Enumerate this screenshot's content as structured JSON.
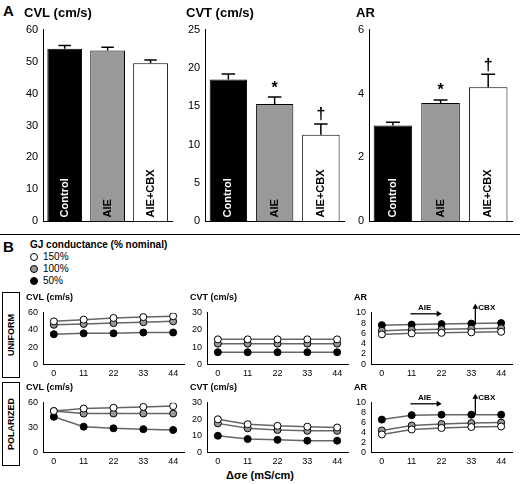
{
  "figure": {
    "panel_labels": [
      "A",
      "B"
    ],
    "row_labels": [
      "UNIFORM",
      "POLARIZED"
    ],
    "legend_title": "GJ conductance (% nominal)",
    "x_label": "Δσe (mS/cm)"
  },
  "chart_data": [
    {
      "type": "bar",
      "title": "CVL (cm/s)",
      "categories": [
        "Control",
        "AIE",
        "AIE+CBX"
      ],
      "values": [
        54,
        53.5,
        49.5
      ],
      "errors": [
        1,
        1,
        1
      ],
      "colors": [
        "#000000",
        "#999999",
        "#ffffff"
      ],
      "ylim": [
        0,
        60
      ],
      "yticks": [
        0,
        10,
        20,
        30,
        40,
        50,
        60
      ],
      "grid": false,
      "tick_labels": "y"
    },
    {
      "type": "bar",
      "title": "CVT (cm/s)",
      "categories": [
        "Control",
        "AIE",
        "AIE+CBX"
      ],
      "values": [
        18.5,
        15.3,
        11.3
      ],
      "errors": [
        0.7,
        0.9,
        1.4
      ],
      "colors": [
        "#000000",
        "#999999",
        "#ffffff"
      ],
      "ylim": [
        0,
        25
      ],
      "yticks": [
        0,
        5,
        10,
        15,
        20,
        25
      ],
      "grid": false,
      "tick_labels": "y",
      "annotations": [
        {
          "category": "AIE",
          "text": "*"
        },
        {
          "category": "AIE+CBX",
          "text": "†"
        }
      ]
    },
    {
      "type": "bar",
      "title": "AR",
      "categories": [
        "Control",
        "AIE",
        "AIE+CBX"
      ],
      "values": [
        3.0,
        3.7,
        4.2
      ],
      "errors": [
        0.1,
        0.1,
        0.4
      ],
      "colors": [
        "#000000",
        "#999999",
        "#ffffff"
      ],
      "ylim": [
        0,
        6
      ],
      "yticks": [
        0,
        2,
        4,
        6
      ],
      "grid": false,
      "tick_labels": "y",
      "annotations": [
        {
          "category": "AIE",
          "text": "*"
        },
        {
          "category": "AIE+CBX",
          "text": "†"
        }
      ]
    },
    {
      "type": "line",
      "title": "CVL (cm/s)",
      "x": [
        0,
        11,
        22,
        33,
        44
      ],
      "series": [
        {
          "name": "150%",
          "color": "#ffffff",
          "values": [
            50,
            52,
            54,
            55,
            56
          ]
        },
        {
          "name": "100%",
          "color": "#999999",
          "values": [
            46,
            47,
            48,
            49,
            50
          ]
        },
        {
          "name": "50%",
          "color": "#000000",
          "values": [
            35,
            36,
            36,
            37,
            37
          ]
        }
      ],
      "xlim": [
        -4,
        48
      ],
      "xticks": [
        0,
        11,
        22,
        33,
        44
      ],
      "ylim": [
        0,
        60
      ],
      "yticks": [
        0,
        20,
        40,
        60
      ],
      "grid": false,
      "marker": "circle"
    },
    {
      "type": "line",
      "title": "CVT (cm/s)",
      "x": [
        0,
        11,
        22,
        33,
        44
      ],
      "series": [
        {
          "name": "150%",
          "color": "#ffffff",
          "values": [
            14.5,
            14.5,
            14.5,
            14.5,
            14.5
          ]
        },
        {
          "name": "100%",
          "color": "#999999",
          "values": [
            12,
            12,
            12,
            12,
            12
          ]
        },
        {
          "name": "50%",
          "color": "#000000",
          "values": [
            7,
            7,
            7,
            7,
            7
          ]
        }
      ],
      "xlim": [
        -4,
        48
      ],
      "xticks": [
        0,
        11,
        22,
        33,
        44
      ],
      "ylim": [
        0,
        30
      ],
      "yticks": [
        0,
        10,
        20,
        30
      ],
      "grid": false,
      "marker": "circle"
    },
    {
      "type": "line",
      "title": "AR",
      "x": [
        0,
        11,
        22,
        33,
        44
      ],
      "series": [
        {
          "name": "150%",
          "color": "#ffffff",
          "values": [
            5.8,
            6,
            6.1,
            6.2,
            6.3
          ]
        },
        {
          "name": "100%",
          "color": "#999999",
          "values": [
            6.5,
            6.7,
            6.8,
            6.9,
            7
          ]
        },
        {
          "name": "50%",
          "color": "#000000",
          "values": [
            7.6,
            7.7,
            7.8,
            7.9,
            8
          ]
        }
      ],
      "xlim": [
        -4,
        48
      ],
      "xticks": [
        0,
        11,
        22,
        33,
        44
      ],
      "ylim": [
        0,
        10
      ],
      "yticks": [
        0,
        2,
        4,
        6,
        8,
        10
      ],
      "grid": false,
      "marker": "circle",
      "annotations": [
        {
          "text": "AIE",
          "arrow": "right"
        },
        {
          "text": "CBX",
          "arrow": "up"
        }
      ]
    },
    {
      "type": "line",
      "title": "CVL (cm/s)",
      "x": [
        0,
        11,
        22,
        33,
        44
      ],
      "series": [
        {
          "name": "150%",
          "color": "#ffffff",
          "values": [
            50,
            53,
            54,
            55,
            56
          ]
        },
        {
          "name": "100%",
          "color": "#999999",
          "values": [
            50,
            47,
            47,
            47,
            47
          ]
        },
        {
          "name": "50%",
          "color": "#000000",
          "values": [
            43,
            31,
            29,
            28,
            27
          ]
        }
      ],
      "xlim": [
        -4,
        48
      ],
      "xticks": [
        0,
        11,
        22,
        33,
        44
      ],
      "ylim": [
        0,
        60
      ],
      "yticks": [
        0,
        30,
        60
      ],
      "grid": false,
      "marker": "circle"
    },
    {
      "type": "line",
      "title": "CVT (cm/s)",
      "x": [
        0,
        11,
        22,
        33,
        44
      ],
      "series": [
        {
          "name": "150%",
          "color": "#ffffff",
          "values": [
            20,
            17,
            16,
            15.5,
            15
          ]
        },
        {
          "name": "100%",
          "color": "#999999",
          "values": [
            17.5,
            14.5,
            13.5,
            13,
            13
          ]
        },
        {
          "name": "50%",
          "color": "#000000",
          "values": [
            10,
            8,
            7.5,
            7,
            7
          ]
        }
      ],
      "xlim": [
        -4,
        48
      ],
      "xticks": [
        0,
        11,
        22,
        33,
        44
      ],
      "ylim": [
        0,
        30
      ],
      "yticks": [
        0,
        10,
        20,
        30
      ],
      "grid": false,
      "marker": "circle"
    },
    {
      "type": "line",
      "title": "AR",
      "x": [
        0,
        11,
        22,
        33,
        44
      ],
      "series": [
        {
          "name": "150%",
          "color": "#ffffff",
          "values": [
            3.6,
            4.6,
            4.9,
            5.1,
            5.2
          ]
        },
        {
          "name": "100%",
          "color": "#999999",
          "values": [
            4.4,
            5.4,
            5.7,
            5.9,
            6
          ]
        },
        {
          "name": "50%",
          "color": "#000000",
          "values": [
            6.6,
            7.5,
            7.6,
            7.6,
            7.6
          ]
        }
      ],
      "xlim": [
        -4,
        48
      ],
      "xticks": [
        0,
        11,
        22,
        33,
        44
      ],
      "ylim": [
        0,
        10
      ],
      "yticks": [
        0,
        2,
        4,
        6,
        8,
        10
      ],
      "grid": false,
      "marker": "circle",
      "annotations": [
        {
          "text": "AIE",
          "arrow": "right"
        },
        {
          "text": "CBX",
          "arrow": "up"
        }
      ]
    }
  ]
}
